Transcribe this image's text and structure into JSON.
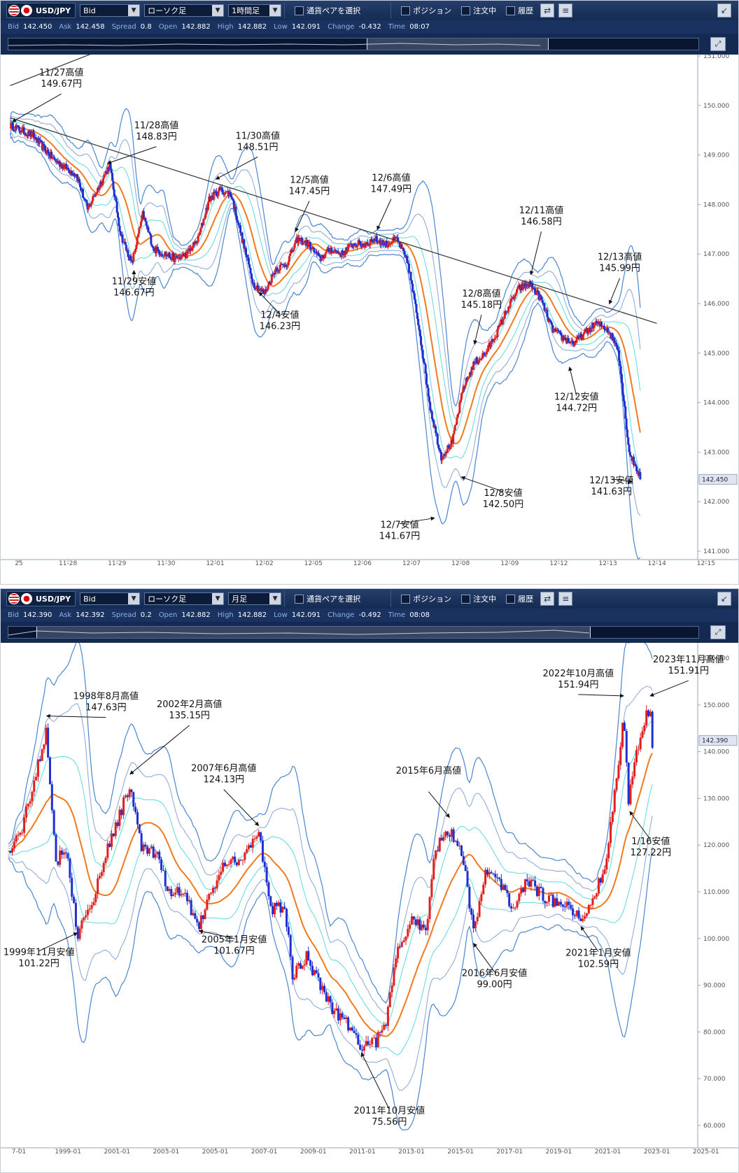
{
  "panels": [
    {
      "toolbar": {
        "pair": "USD/JPY",
        "price_type": "Bid",
        "chart_type": "ローソク足",
        "timeframe": "1時間足",
        "select_pair_label": "通貨ペアを選択",
        "position_label": "ポジション",
        "order_label": "注文中",
        "history_label": "履歴"
      },
      "quote": {
        "bid_label": "Bid",
        "bid": "142.450",
        "ask_label": "Ask",
        "ask": "142.458",
        "spread_label": "Spread",
        "spread": "0.8",
        "open_label": "Open",
        "open": "142.882",
        "high_label": "High",
        "high": "142.882",
        "low_label": "Low",
        "low": "142.091",
        "change_label": "Change",
        "change": "-0.432",
        "time_label": "Time",
        "time": "08:07"
      }
    },
    {
      "toolbar": {
        "pair": "USD/JPY",
        "price_type": "Bid",
        "chart_type": "ローソク足",
        "timeframe": "月足",
        "select_pair_label": "通貨ペアを選択",
        "position_label": "ポジション",
        "order_label": "注文中",
        "history_label": "履歴"
      },
      "quote": {
        "bid_label": "Bid",
        "bid": "142.390",
        "ask_label": "Ask",
        "ask": "142.392",
        "spread_label": "Spread",
        "spread": "0.2",
        "open_label": "Open",
        "open": "142.882",
        "high_label": "High",
        "high": "142.882",
        "low_label": "Low",
        "low": "142.091",
        "change_label": "Change",
        "change": "-0.492",
        "time_label": "Time",
        "time": "08:08"
      }
    }
  ],
  "chart_data": [
    {
      "type": "candlestick",
      "timeframe": "1時間足",
      "x_tick_labels": [
        "25",
        "11-28",
        "11-29",
        "11-30",
        "12-01",
        "12-02",
        "12-05",
        "12-06",
        "12-07",
        "12-08",
        "12-09",
        "12-12",
        "12-13",
        "12-14",
        "12-15"
      ],
      "y_ticks": [
        141.0,
        142.0,
        143.0,
        144.0,
        145.0,
        146.0,
        147.0,
        148.0,
        149.0,
        150.0,
        151.0
      ],
      "y_tick_labels": [
        "141.000",
        "142.000",
        "143.000",
        "144.000",
        "145.000",
        "146.000",
        "147.000",
        "148.000",
        "149.000",
        "150.000",
        "151.000"
      ],
      "ylim": [
        141.0,
        151.0
      ],
      "current_price": 142.45,
      "current_price_label": "142.450",
      "close_anchors": [
        [
          0,
          149.6
        ],
        [
          2,
          149.4
        ],
        [
          4,
          148.9
        ],
        [
          6,
          148.6
        ],
        [
          7,
          147.9
        ],
        [
          9,
          148.8
        ],
        [
          10,
          147.4
        ],
        [
          11,
          146.8
        ],
        [
          12,
          147.8
        ],
        [
          13,
          147.1
        ],
        [
          15,
          146.9
        ],
        [
          16,
          147.0
        ],
        [
          17,
          147.3
        ],
        [
          18,
          148.1
        ],
        [
          19,
          148.3
        ],
        [
          20,
          148.2
        ],
        [
          21,
          147.3
        ],
        [
          22,
          146.4
        ],
        [
          23,
          146.2
        ],
        [
          24,
          146.7
        ],
        [
          25,
          146.8
        ],
        [
          26,
          147.3
        ],
        [
          27,
          147.2
        ],
        [
          28,
          146.9
        ],
        [
          29,
          147.1
        ],
        [
          30,
          147.0
        ],
        [
          31,
          147.2
        ],
        [
          32,
          147.2
        ],
        [
          33,
          147.3
        ],
        [
          34,
          147.2
        ],
        [
          35,
          147.3
        ],
        [
          36,
          146.8
        ],
        [
          37,
          145.5
        ],
        [
          38,
          143.9
        ],
        [
          39,
          142.9
        ],
        [
          40,
          143.2
        ],
        [
          41,
          144.3
        ],
        [
          42,
          144.8
        ],
        [
          43,
          145.0
        ],
        [
          44,
          145.4
        ],
        [
          45,
          145.9
        ],
        [
          46,
          146.3
        ],
        [
          47,
          146.4
        ],
        [
          48,
          146.1
        ],
        [
          49,
          145.5
        ],
        [
          50,
          145.3
        ],
        [
          51,
          145.2
        ],
        [
          52,
          145.4
        ],
        [
          53,
          145.6
        ],
        [
          54,
          145.5
        ],
        [
          55,
          145.1
        ],
        [
          56,
          143.0
        ],
        [
          57,
          142.5
        ]
      ],
      "trendlines": [
        {
          "points": [
            [
              0,
              150.4
            ],
            [
              8,
              151.1
            ]
          ]
        },
        {
          "points": [
            [
              0,
              149.75
            ],
            [
              58.5,
              145.6
            ]
          ]
        }
      ],
      "annotations": [
        {
          "lines": [
            "11/27高値",
            "149.67円"
          ],
          "x": 0.2,
          "y": 149.67
        },
        {
          "lines": [
            "11/28高値",
            "148.83円"
          ],
          "x": 8.8,
          "y": 148.83
        },
        {
          "lines": [
            "11/29安値",
            "146.67円"
          ],
          "x": 11.2,
          "y": 146.67
        },
        {
          "lines": [
            "11/30高値",
            "148.51円"
          ],
          "x": 18.6,
          "y": 148.51
        },
        {
          "lines": [
            "12/4安値",
            "146.23円"
          ],
          "x": 22.5,
          "y": 146.23
        },
        {
          "lines": [
            "12/5高値",
            "147.45円"
          ],
          "x": 25.8,
          "y": 147.45
        },
        {
          "lines": [
            "12/6高値",
            "147.49円"
          ],
          "x": 33.2,
          "y": 147.49
        },
        {
          "lines": [
            "12/7安値",
            "141.67円"
          ],
          "x": 38.4,
          "y": 141.67
        },
        {
          "lines": [
            "12/8高値",
            "145.18円"
          ],
          "x": 42.0,
          "y": 145.18
        },
        {
          "lines": [
            "12/8安値",
            "142.50円"
          ],
          "x": 40.8,
          "y": 142.5
        },
        {
          "lines": [
            "12/11高値",
            "146.58円"
          ],
          "x": 47.1,
          "y": 146.58
        },
        {
          "lines": [
            "12/12安値",
            "144.72円"
          ],
          "x": 50.6,
          "y": 144.72
        },
        {
          "lines": [
            "12/13高値",
            "145.99円"
          ],
          "x": 54.2,
          "y": 145.99
        },
        {
          "lines": [
            "12/13安値",
            "141.63円"
          ],
          "x": 56.3,
          "y": 142.4
        }
      ]
    },
    {
      "type": "candlestick",
      "timeframe": "月足",
      "x_tick_labels": [
        "7-01",
        "1999-01",
        "2001-01",
        "2003-01",
        "2005-01",
        "2007-01",
        "2009-01",
        "2011-01",
        "2013-01",
        "2015-01",
        "2017-01",
        "2019-01",
        "2021-01",
        "2023-01",
        "2025-01"
      ],
      "y_ticks": [
        60,
        70,
        80,
        90,
        100,
        110,
        120,
        130,
        140,
        150,
        160
      ],
      "y_tick_labels": [
        "60.000",
        "70.000",
        "80.000",
        "90.000",
        "100.000",
        "110.000",
        "120.000",
        "130.000",
        "140.000",
        "150.000",
        "160.000"
      ],
      "ylim": [
        57.0,
        163.0
      ],
      "current_price": 142.39,
      "current_price_label": "142.390",
      "close_anchors": [
        [
          1997.0,
          118
        ],
        [
          1997.6,
          124
        ],
        [
          1998.0,
          132
        ],
        [
          1998.6,
          145
        ],
        [
          1999.0,
          116
        ],
        [
          1999.4,
          120
        ],
        [
          1999.9,
          101
        ],
        [
          2000.5,
          107
        ],
        [
          2001.0,
          117
        ],
        [
          2001.5,
          124
        ],
        [
          2002.1,
          133
        ],
        [
          2002.6,
          119
        ],
        [
          2003.2,
          118
        ],
        [
          2003.7,
          110
        ],
        [
          2004.3,
          110
        ],
        [
          2004.7,
          106
        ],
        [
          2005.0,
          103
        ],
        [
          2005.6,
          111
        ],
        [
          2006.2,
          117
        ],
        [
          2006.8,
          117
        ],
        [
          2007.5,
          123
        ],
        [
          2008.0,
          106
        ],
        [
          2008.6,
          107
        ],
        [
          2008.9,
          92
        ],
        [
          2009.5,
          96
        ],
        [
          2010.0,
          91
        ],
        [
          2010.6,
          85
        ],
        [
          2011.2,
          82
        ],
        [
          2011.8,
          77
        ],
        [
          2012.4,
          78
        ],
        [
          2012.8,
          81
        ],
        [
          2013.3,
          97
        ],
        [
          2013.9,
          104
        ],
        [
          2014.5,
          102
        ],
        [
          2014.9,
          119
        ],
        [
          2015.5,
          123
        ],
        [
          2016.0,
          119
        ],
        [
          2016.5,
          102
        ],
        [
          2017.0,
          114
        ],
        [
          2017.6,
          112
        ],
        [
          2018.2,
          106
        ],
        [
          2018.7,
          113
        ],
        [
          2019.2,
          110
        ],
        [
          2019.7,
          108
        ],
        [
          2020.2,
          108
        ],
        [
          2020.6,
          107
        ],
        [
          2021.0,
          103
        ],
        [
          2021.6,
          110
        ],
        [
          2022.0,
          115
        ],
        [
          2022.4,
          130
        ],
        [
          2022.8,
          148
        ],
        [
          2023.0,
          130
        ],
        [
          2023.5,
          144
        ],
        [
          2023.9,
          150
        ],
        [
          2024.0,
          142
        ]
      ],
      "trendlines": [],
      "annotations": [
        {
          "lines": [
            "1998年8月高値",
            "147.63円"
          ],
          "x": 1998.6,
          "y": 147.63
        },
        {
          "lines": [
            "1999年11月安値",
            "101.22円"
          ],
          "x": 1999.9,
          "y": 101.22
        },
        {
          "lines": [
            "2002年2月高値",
            "135.15円"
          ],
          "x": 2002.1,
          "y": 135.15
        },
        {
          "lines": [
            "2005年1月安値",
            "101.67円"
          ],
          "x": 2005.0,
          "y": 101.67
        },
        {
          "lines": [
            "2007年6月高値",
            "124.13円"
          ],
          "x": 2007.5,
          "y": 124.13
        },
        {
          "lines": [
            "2011年10月安値",
            "75.56円"
          ],
          "x": 2011.8,
          "y": 75.56
        },
        {
          "lines": [
            "2015年6月高値"
          ],
          "x": 2015.5,
          "y": 125.9
        },
        {
          "lines": [
            "2016年6月安値",
            "99.00円"
          ],
          "x": 2016.5,
          "y": 99.0
        },
        {
          "lines": [
            "2021年1月安値",
            "102.59円"
          ],
          "x": 2021.0,
          "y": 102.59
        },
        {
          "lines": [
            "2022年10月高値",
            "151.94円"
          ],
          "x": 2022.8,
          "y": 151.94
        },
        {
          "lines": [
            "2023年11月高値",
            "151.91円"
          ],
          "x": 2023.9,
          "y": 151.91
        },
        {
          "lines": [
            "1/16安値",
            "127.22円"
          ],
          "x": 2023.05,
          "y": 127.22
        }
      ]
    }
  ]
}
